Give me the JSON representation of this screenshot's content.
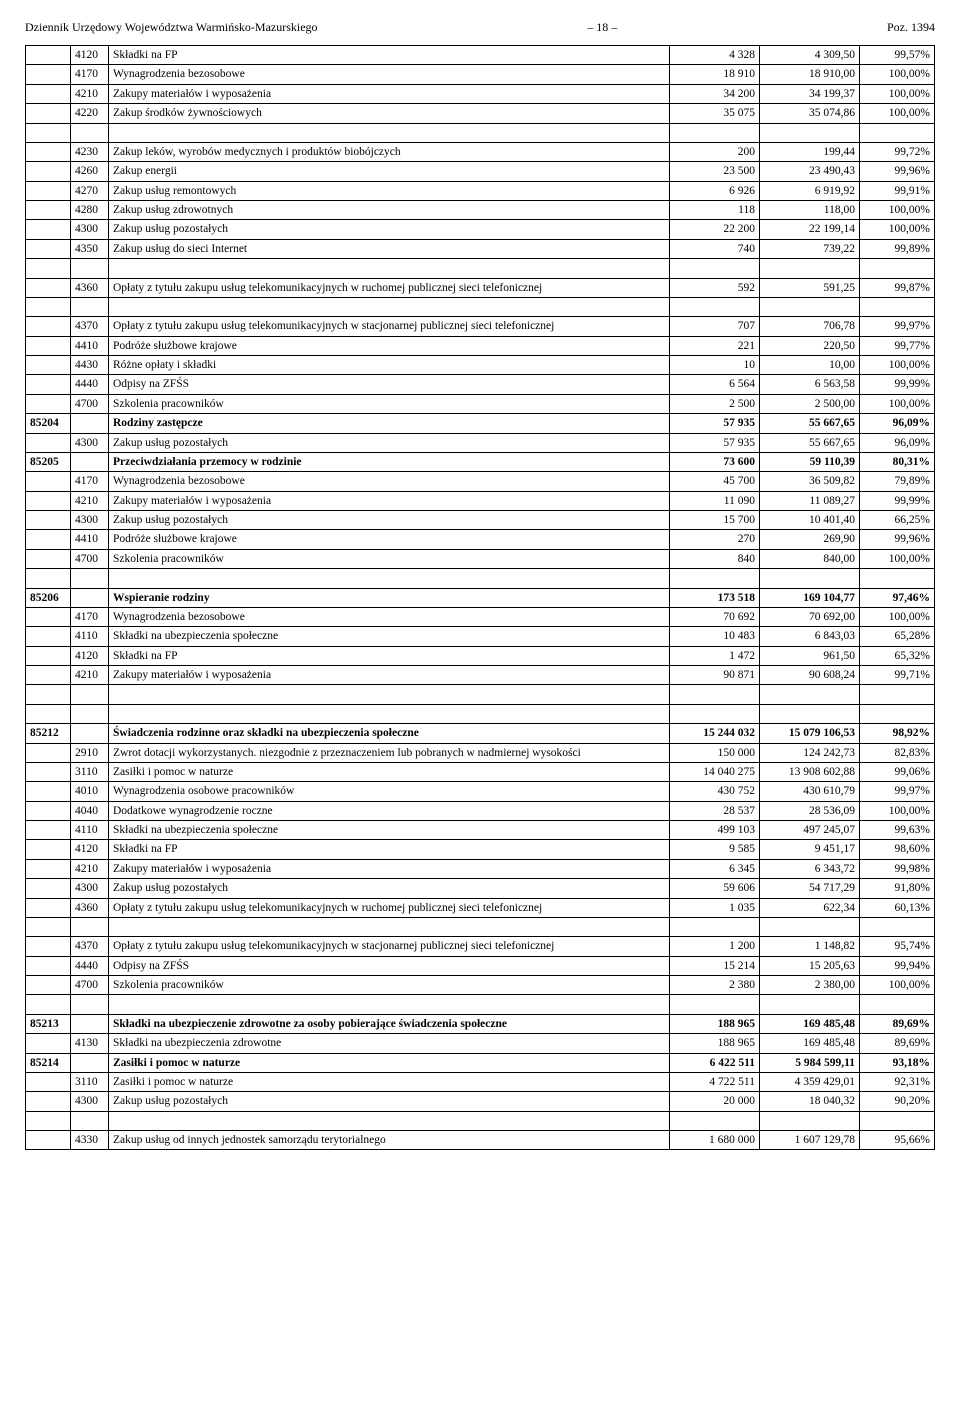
{
  "header": {
    "left": "Dziennik Urzędowy Województwa Warmińsko-Mazurskiego",
    "page": "– 18 –",
    "right": "Poz. 1394"
  },
  "rows": [
    {
      "a": "",
      "b": "4120",
      "c": "Składki na FP",
      "d": "4 328",
      "e": "4 309,50",
      "f": "99,57%"
    },
    {
      "a": "",
      "b": "4170",
      "c": "Wynagrodzenia bezosobowe",
      "d": "18 910",
      "e": "18 910,00",
      "f": "100,00%"
    },
    {
      "a": "",
      "b": "4210",
      "c": "Zakupy materiałów i wyposażenia",
      "d": "34 200",
      "e": "34 199,37",
      "f": "100,00%"
    },
    {
      "a": "",
      "b": "4220",
      "c": "Zakup środków żywnościowych",
      "d": "35 075",
      "e": "35 074,86",
      "f": "100,00%"
    },
    {
      "spacer": true
    },
    {
      "a": "",
      "b": "4230",
      "c": "Zakup leków, wyrobów medycznych i produktów biobójczych",
      "d": "200",
      "e": "199,44",
      "f": "99,72%"
    },
    {
      "a": "",
      "b": "4260",
      "c": "Zakup energii",
      "d": "23 500",
      "e": "23 490,43",
      "f": "99,96%"
    },
    {
      "a": "",
      "b": "4270",
      "c": "Zakup usług remontowych",
      "d": "6 926",
      "e": "6 919,92",
      "f": "99,91%"
    },
    {
      "a": "",
      "b": "4280",
      "c": "Zakup usług zdrowotnych",
      "d": "118",
      "e": "118,00",
      "f": "100,00%"
    },
    {
      "a": "",
      "b": "4300",
      "c": "Zakup usług pozostałych",
      "d": "22 200",
      "e": "22 199,14",
      "f": "100,00%"
    },
    {
      "a": "",
      "b": "4350",
      "c": "Zakup usług do sieci Internet",
      "d": "740",
      "e": "739,22",
      "f": "99,89%"
    },
    {
      "spacer": true
    },
    {
      "a": "",
      "b": "4360",
      "c": "Opłaty z tytułu zakupu usług telekomunikacyjnych w ruchomej publicznej sieci telefonicznej",
      "d": "592",
      "e": "591,25",
      "f": "99,87%"
    },
    {
      "spacer": true
    },
    {
      "a": "",
      "b": "4370",
      "c": "Opłaty z tytułu zakupu usług telekomunikacyjnych w stacjonarnej publicznej sieci telefonicznej",
      "d": "707",
      "e": "706,78",
      "f": "99,97%"
    },
    {
      "a": "",
      "b": "4410",
      "c": "Podróże służbowe krajowe",
      "d": "221",
      "e": "220,50",
      "f": "99,77%"
    },
    {
      "a": "",
      "b": "4430",
      "c": "Różne opłaty i składki",
      "d": "10",
      "e": "10,00",
      "f": "100,00%"
    },
    {
      "a": "",
      "b": "4440",
      "c": "Odpisy na ZFŚS",
      "d": "6 564",
      "e": "6 563,58",
      "f": "99,99%"
    },
    {
      "a": "",
      "b": "4700",
      "c": "Szkolenia pracowników",
      "d": "2 500",
      "e": "2 500,00",
      "f": "100,00%"
    },
    {
      "bold": true,
      "a": "85204",
      "b": "",
      "c": "Rodziny zastępcze",
      "d": "57 935",
      "e": "55 667,65",
      "f": "96,09%"
    },
    {
      "a": "",
      "b": "4300",
      "c": "Zakup usług pozostałych",
      "d": "57 935",
      "e": "55 667,65",
      "f": "96,09%"
    },
    {
      "bold": true,
      "a": "85205",
      "b": "",
      "c": "Przeciwdziałania przemocy w rodzinie",
      "d": "73 600",
      "e": "59 110,39",
      "f": "80,31%"
    },
    {
      "a": "",
      "b": "4170",
      "c": "Wynagrodzenia bezosobowe",
      "d": "45 700",
      "e": "36 509,82",
      "f": "79,89%"
    },
    {
      "a": "",
      "b": "4210",
      "c": "Zakupy materiałów i wyposażenia",
      "d": "11 090",
      "e": "11 089,27",
      "f": "99,99%"
    },
    {
      "a": "",
      "b": "4300",
      "c": "Zakup usług pozostałych",
      "d": "15 700",
      "e": "10 401,40",
      "f": "66,25%"
    },
    {
      "a": "",
      "b": "4410",
      "c": "Podróże służbowe krajowe",
      "d": "270",
      "e": "269,90",
      "f": "99,96%"
    },
    {
      "a": "",
      "b": "4700",
      "c": "Szkolenia pracowników",
      "d": "840",
      "e": "840,00",
      "f": "100,00%"
    },
    {
      "spacer": true
    },
    {
      "bold": true,
      "a": "85206",
      "b": "",
      "c": "Wspieranie rodziny",
      "d": "173 518",
      "e": "169 104,77",
      "f": "97,46%"
    },
    {
      "a": "",
      "b": "4170",
      "c": "Wynagrodzenia bezosobowe",
      "d": "70 692",
      "e": "70 692,00",
      "f": "100,00%"
    },
    {
      "a": "",
      "b": "4110",
      "c": "Składki na ubezpieczenia społeczne",
      "d": "10 483",
      "e": "6 843,03",
      "f": "65,28%"
    },
    {
      "a": "",
      "b": "4120",
      "c": "Składki na FP",
      "d": "1 472",
      "e": "961,50",
      "f": "65,32%"
    },
    {
      "a": "",
      "b": "4210",
      "c": "Zakupy materiałów i wyposażenia",
      "d": "90 871",
      "e": "90 608,24",
      "f": "99,71%"
    },
    {
      "spacer": true
    },
    {
      "spacer": true
    },
    {
      "bold": true,
      "a": "85212",
      "b": "",
      "c": "Świadczenia rodzinne oraz składki na ubezpieczenia społeczne",
      "d": "15 244 032",
      "e": "15 079 106,53",
      "f": "98,92%"
    },
    {
      "a": "",
      "b": "2910",
      "c": "Zwrot dotacji wykorzystanych. niezgodnie z przeznaczeniem lub pobranych w nadmiernej wysokości",
      "d": "150 000",
      "e": "124 242,73",
      "f": "82,83%"
    },
    {
      "a": "",
      "b": "3110",
      "c": "Zasiłki i pomoc w naturze",
      "d": "14 040 275",
      "e": "13 908 602,88",
      "f": "99,06%"
    },
    {
      "a": "",
      "b": "4010",
      "c": "Wynagrodzenia osobowe pracowników",
      "d": "430 752",
      "e": "430 610,79",
      "f": "99,97%"
    },
    {
      "a": "",
      "b": "4040",
      "c": "Dodatkowe wynagrodzenie roczne",
      "d": "28 537",
      "e": "28 536,09",
      "f": "100,00%"
    },
    {
      "a": "",
      "b": "4110",
      "c": "Składki na ubezpieczenia społeczne",
      "d": "499 103",
      "e": "497 245,07",
      "f": "99,63%"
    },
    {
      "a": "",
      "b": "4120",
      "c": "Składki na FP",
      "d": "9 585",
      "e": "9 451,17",
      "f": "98,60%"
    },
    {
      "a": "",
      "b": "4210",
      "c": "Zakupy materiałów i wyposażenia",
      "d": "6 345",
      "e": "6 343,72",
      "f": "99,98%"
    },
    {
      "a": "",
      "b": "4300",
      "c": "Zakup usług pozostałych",
      "d": "59 606",
      "e": "54 717,29",
      "f": "91,80%"
    },
    {
      "a": "",
      "b": "4360",
      "c": "Opłaty z tytułu zakupu usług telekomunikacyjnych w ruchomej publicznej sieci telefonicznej",
      "d": "1 035",
      "e": "622,34",
      "f": "60,13%"
    },
    {
      "spacer": true
    },
    {
      "a": "",
      "b": "4370",
      "c": "Opłaty z tytułu zakupu usług telekomunikacyjnych w stacjonarnej publicznej sieci telefonicznej",
      "d": "1 200",
      "e": "1 148,82",
      "f": "95,74%"
    },
    {
      "a": "",
      "b": "4440",
      "c": "Odpisy na ZFŚS",
      "d": "15 214",
      "e": "15 205,63",
      "f": "99,94%"
    },
    {
      "a": "",
      "b": "4700",
      "c": "Szkolenia pracowników",
      "d": "2 380",
      "e": "2 380,00",
      "f": "100,00%"
    },
    {
      "spacer": true
    },
    {
      "bold": true,
      "a": "85213",
      "b": "",
      "c": "Składki na ubezpieczenie zdrowotne za osoby pobierające świadczenia społeczne",
      "d": "188 965",
      "e": "169 485,48",
      "f": "89,69%"
    },
    {
      "a": "",
      "b": "4130",
      "c": "Składki na ubezpieczenia zdrowotne",
      "d": "188 965",
      "e": "169 485,48",
      "f": "89,69%"
    },
    {
      "bold": true,
      "a": "85214",
      "b": "",
      "c": "Zasiłki i pomoc w naturze",
      "d": "6 422 511",
      "e": "5 984 599,11",
      "f": "93,18%"
    },
    {
      "a": "",
      "b": "3110",
      "c": "Zasiłki i pomoc w naturze",
      "d": "4 722 511",
      "e": "4 359 429,01",
      "f": "92,31%"
    },
    {
      "a": "",
      "b": "4300",
      "c": "Zakup usług pozostałych",
      "d": "20 000",
      "e": "18 040,32",
      "f": "90,20%"
    },
    {
      "spacer": true
    },
    {
      "a": "",
      "b": "4330",
      "c": "Zakup usług od innych jednostek samorządu terytorialnego",
      "d": "1 680 000",
      "e": "1 607 129,78",
      "f": "95,66%"
    }
  ]
}
